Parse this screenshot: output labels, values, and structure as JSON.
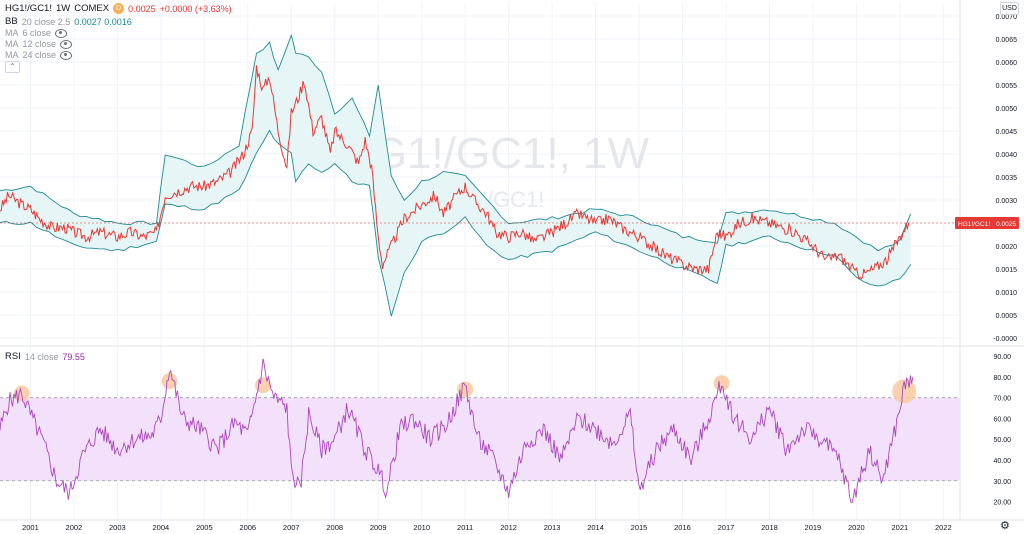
{
  "header": {
    "symbol": "HG1!/GC1!",
    "interval": "1W",
    "exchange": "COMEX",
    "badge": "D",
    "price_readout": "0.0025",
    "change_readout": "+0.0000 (+3.63%)"
  },
  "indicators": [
    {
      "name": "BB",
      "params": "20 close 2.5",
      "values": "0.0027  0.0016"
    },
    {
      "name": "MA",
      "params": "6 close"
    },
    {
      "name": "MA",
      "params": "12 close"
    },
    {
      "name": "MA",
      "params": "24 close"
    }
  ],
  "collapse_icon": "chevron-up",
  "currency": "USD",
  "settings_icon": "gear-icon",
  "watermark": {
    "main": "HG1!/GC1!, 1W",
    "sub": "HG1!/GC1!"
  },
  "rsi_legend": {
    "name": "RSI",
    "params": "14 close",
    "value": "79.55"
  },
  "colors": {
    "price_line": "#e53935",
    "bands": "#1e8a96",
    "band_fill": "#e6f5f5",
    "rsi_line": "#ab47bc",
    "rsi_fill": "#f3e1fb",
    "highlight": "#f8c9a2",
    "grid": "#f0f3fa"
  },
  "chart_data": [
    {
      "type": "line",
      "title": "HG1!/GC1!, 1W",
      "y_axis_ticks": [
        "0.0070",
        "0.0065",
        "0.0060",
        "0.0055",
        "0.0050",
        "0.0045",
        "0.0040",
        "0.0035",
        "0.0030",
        "0.0025",
        "0.0020",
        "0.0015",
        "0.0010",
        "0.0005",
        "-0.0000"
      ],
      "ylim": [
        0.0,
        0.007
      ],
      "x_axis_ticks": [
        "2001",
        "2002",
        "2003",
        "2004",
        "2005",
        "2006",
        "2007",
        "2008",
        "2009",
        "2010",
        "2011",
        "2012",
        "2013",
        "2014",
        "2015",
        "2016",
        "2017",
        "2018",
        "2019",
        "2020",
        "2021",
        "2022"
      ],
      "xlim": [
        2000.3,
        2022.2
      ],
      "last_value_label": "HG1!/GC1!",
      "last_value": "0.0025",
      "series": [
        {
          "name": "HG1!/GC1!",
          "x": [
            2000.3,
            2000.5,
            2000.8,
            2001.0,
            2001.2,
            2001.5,
            2001.8,
            2002.0,
            2002.3,
            2002.6,
            2003.0,
            2003.3,
            2003.6,
            2003.9,
            2004.1,
            2004.4,
            2004.7,
            2005.0,
            2005.3,
            2005.6,
            2005.9,
            2006.1,
            2006.2,
            2006.35,
            2006.5,
            2006.7,
            2006.9,
            2007.0,
            2007.15,
            2007.3,
            2007.5,
            2007.7,
            2007.9,
            2008.0,
            2008.3,
            2008.55,
            2008.7,
            2008.85,
            2009.0,
            2009.1,
            2009.3,
            2009.6,
            2010.0,
            2010.3,
            2010.5,
            2010.8,
            2011.0,
            2011.2,
            2011.5,
            2011.7,
            2012.0,
            2012.3,
            2012.6,
            2013.0,
            2013.3,
            2013.6,
            2014.0,
            2014.3,
            2014.6,
            2015.0,
            2015.3,
            2015.6,
            2016.0,
            2016.3,
            2016.6,
            2016.8,
            2017.0,
            2017.3,
            2017.6,
            2018.0,
            2018.3,
            2018.6,
            2019.0,
            2019.3,
            2019.6,
            2020.0,
            2020.2,
            2020.4,
            2020.7,
            2021.0,
            2021.2
          ],
          "values": [
            0.0028,
            0.0031,
            0.0029,
            0.0028,
            0.0026,
            0.0024,
            0.0024,
            0.0023,
            0.0022,
            0.0023,
            0.0022,
            0.0023,
            0.0022,
            0.0023,
            0.0031,
            0.0032,
            0.0033,
            0.0033,
            0.0034,
            0.0036,
            0.004,
            0.0045,
            0.0059,
            0.0054,
            0.0057,
            0.0045,
            0.0037,
            0.0049,
            0.0052,
            0.0056,
            0.0045,
            0.0048,
            0.004,
            0.0045,
            0.0042,
            0.0038,
            0.0043,
            0.0037,
            0.0022,
            0.0016,
            0.002,
            0.0026,
            0.0029,
            0.0031,
            0.0027,
            0.0031,
            0.0033,
            0.003,
            0.0027,
            0.0023,
            0.0022,
            0.0023,
            0.0021,
            0.0023,
            0.0025,
            0.0027,
            0.0025,
            0.0026,
            0.0024,
            0.0022,
            0.002,
            0.0018,
            0.0016,
            0.0015,
            0.0015,
            0.0023,
            0.0022,
            0.0025,
            0.0026,
            0.0025,
            0.0024,
            0.0023,
            0.002,
            0.0017,
            0.0018,
            0.0014,
            0.0014,
            0.0015,
            0.0017,
            0.0022,
            0.0025
          ]
        },
        {
          "name": "BB upper",
          "x": [
            2000.3,
            2001.0,
            2002.0,
            2003.0,
            2003.9,
            2004.1,
            2005.0,
            2005.8,
            2006.2,
            2006.5,
            2006.7,
            2007.0,
            2007.1,
            2007.4,
            2007.7,
            2008.0,
            2008.4,
            2008.8,
            2009.0,
            2009.3,
            2009.6,
            2010.0,
            2010.5,
            2011.0,
            2011.5,
            2012.0,
            2013.0,
            2014.0,
            2015.0,
            2016.0,
            2016.8,
            2017.0,
            2018.0,
            2019.0,
            2019.5,
            2020.0,
            2020.5,
            2021.0,
            2021.25
          ],
          "values": [
            0.0032,
            0.0033,
            0.0027,
            0.0025,
            0.0025,
            0.004,
            0.0037,
            0.0042,
            0.0062,
            0.0064,
            0.0058,
            0.0066,
            0.0062,
            0.0061,
            0.0058,
            0.0049,
            0.0052,
            0.0044,
            0.0055,
            0.0035,
            0.003,
            0.0034,
            0.0036,
            0.0035,
            0.003,
            0.0025,
            0.0026,
            0.0028,
            0.0026,
            0.0022,
            0.0021,
            0.0027,
            0.0028,
            0.0026,
            0.0025,
            0.0022,
            0.0019,
            0.0021,
            0.0027
          ]
        },
        {
          "name": "BB lower",
          "x": [
            2000.3,
            2001.0,
            2002.0,
            2003.0,
            2003.9,
            2004.1,
            2005.0,
            2005.8,
            2006.2,
            2006.5,
            2006.7,
            2007.0,
            2007.1,
            2007.4,
            2007.7,
            2008.0,
            2008.4,
            2008.8,
            2009.0,
            2009.3,
            2009.6,
            2010.0,
            2010.5,
            2011.0,
            2011.5,
            2012.0,
            2013.0,
            2014.0,
            2015.0,
            2016.0,
            2016.8,
            2017.0,
            2018.0,
            2019.0,
            2019.5,
            2020.0,
            2020.5,
            2021.0,
            2021.25
          ],
          "values": [
            0.0025,
            0.0025,
            0.002,
            0.0019,
            0.0021,
            0.0029,
            0.0028,
            0.0032,
            0.004,
            0.0045,
            0.0042,
            0.004,
            0.0034,
            0.0038,
            0.0036,
            0.0038,
            0.0034,
            0.0033,
            0.0018,
            0.0005,
            0.0014,
            0.0021,
            0.0023,
            0.0026,
            0.002,
            0.0017,
            0.0019,
            0.0023,
            0.0019,
            0.0015,
            0.0012,
            0.002,
            0.0022,
            0.0019,
            0.0018,
            0.0013,
            0.0011,
            0.0013,
            0.0016
          ]
        }
      ]
    },
    {
      "type": "line",
      "title": "RSI 14 close",
      "y_axis_ticks": [
        "90.00",
        "80.00",
        "70.00",
        "60.00",
        "50.00",
        "40.00",
        "30.00",
        "20.00"
      ],
      "ylim": [
        14,
        92
      ],
      "upper_band": 70,
      "lower_band": 30,
      "last_value": "79.55",
      "series": [
        {
          "name": "RSI",
          "x": [
            2000.3,
            2000.5,
            2000.8,
            2001.0,
            2001.3,
            2001.6,
            2001.9,
            2002.2,
            2002.6,
            2003.0,
            2003.4,
            2003.8,
            2004.0,
            2004.2,
            2004.5,
            2004.9,
            2005.3,
            2005.7,
            2006.0,
            2006.35,
            2006.6,
            2006.9,
            2007.0,
            2007.2,
            2007.4,
            2007.7,
            2008.0,
            2008.3,
            2008.7,
            2009.0,
            2009.2,
            2009.5,
            2009.8,
            2010.2,
            2010.6,
            2011.0,
            2011.3,
            2011.6,
            2012.0,
            2012.4,
            2012.8,
            2013.2,
            2013.6,
            2014.0,
            2014.4,
            2014.8,
            2015.0,
            2015.4,
            2015.8,
            2016.2,
            2016.6,
            2016.9,
            2017.2,
            2017.6,
            2018.0,
            2018.4,
            2018.8,
            2019.2,
            2019.6,
            2019.9,
            2020.3,
            2020.6,
            2020.9,
            2021.1,
            2021.3
          ],
          "values": [
            55,
            68,
            72,
            62,
            48,
            30,
            24,
            42,
            55,
            45,
            50,
            52,
            60,
            85,
            60,
            55,
            45,
            58,
            52,
            86,
            70,
            65,
            35,
            25,
            62,
            45,
            50,
            65,
            45,
            35,
            25,
            55,
            60,
            50,
            58,
            76,
            50,
            42,
            25,
            48,
            55,
            40,
            60,
            55,
            48,
            62,
            25,
            45,
            55,
            40,
            60,
            77,
            60,
            50,
            65,
            45,
            55,
            50,
            40,
            20,
            45,
            30,
            55,
            75,
            80
          ]
        }
      ],
      "highlights": [
        [
          2000.8,
          72
        ],
        [
          2004.2,
          78
        ],
        [
          2006.35,
          76
        ],
        [
          2011.0,
          74
        ],
        [
          2016.9,
          77
        ],
        [
          2021.1,
          73
        ]
      ]
    }
  ]
}
